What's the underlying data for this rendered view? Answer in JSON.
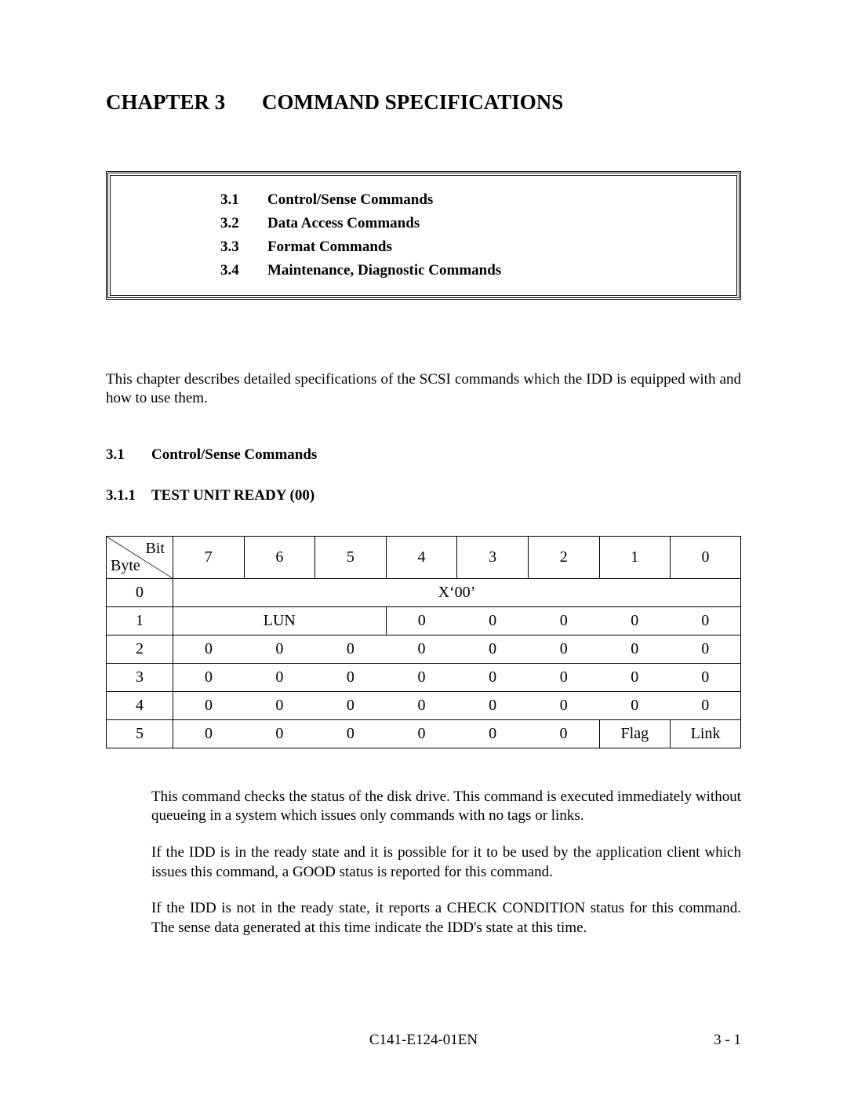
{
  "chapter": {
    "label": "CHAPTER 3",
    "title": "COMMAND SPECIFICATIONS"
  },
  "toc": [
    {
      "num": "3.1",
      "label": "Control/Sense Commands"
    },
    {
      "num": "3.2",
      "label": "Data Access Commands"
    },
    {
      "num": "3.3",
      "label": "Format Commands"
    },
    {
      "num": "3.4",
      "label": "Maintenance, Diagnostic Commands"
    }
  ],
  "intro": "This chapter describes detailed specifications of the SCSI commands which the IDD is equipped with and how to use them.",
  "section": {
    "num": "3.1",
    "title": "Control/Sense Commands"
  },
  "subsection": {
    "num": "3.1.1",
    "title": "TEST UNIT READY (00)"
  },
  "table": {
    "corner": {
      "bit": "Bit",
      "byte": "Byte"
    },
    "bit_headers": [
      "7",
      "6",
      "5",
      "4",
      "3",
      "2",
      "1",
      "0"
    ],
    "rows": [
      {
        "byte": "0",
        "cells": [
          {
            "text": "X‘00’",
            "span": 8
          }
        ]
      },
      {
        "byte": "1",
        "cells": [
          {
            "text": "LUN",
            "span": 3
          },
          {
            "text": "0"
          },
          {
            "text": "0"
          },
          {
            "text": "0"
          },
          {
            "text": "0"
          },
          {
            "text": "0"
          }
        ]
      },
      {
        "byte": "2",
        "cells": [
          {
            "text": "0"
          },
          {
            "text": "0"
          },
          {
            "text": "0"
          },
          {
            "text": "0"
          },
          {
            "text": "0"
          },
          {
            "text": "0"
          },
          {
            "text": "0"
          },
          {
            "text": "0"
          }
        ]
      },
      {
        "byte": "3",
        "cells": [
          {
            "text": "0"
          },
          {
            "text": "0"
          },
          {
            "text": "0"
          },
          {
            "text": "0"
          },
          {
            "text": "0"
          },
          {
            "text": "0"
          },
          {
            "text": "0"
          },
          {
            "text": "0"
          }
        ]
      },
      {
        "byte": "4",
        "cells": [
          {
            "text": "0"
          },
          {
            "text": "0"
          },
          {
            "text": "0"
          },
          {
            "text": "0"
          },
          {
            "text": "0"
          },
          {
            "text": "0"
          },
          {
            "text": "0"
          },
          {
            "text": "0"
          }
        ]
      },
      {
        "byte": "5",
        "cells": [
          {
            "text": "0"
          },
          {
            "text": "0"
          },
          {
            "text": "0"
          },
          {
            "text": "0"
          },
          {
            "text": "0"
          },
          {
            "text": "0"
          },
          {
            "text": "Flag"
          },
          {
            "text": "Link"
          }
        ]
      }
    ],
    "col_widths_pct": [
      10.5,
      11.2,
      11.2,
      11.2,
      11.2,
      11.2,
      11.2,
      11.2,
      11.1
    ],
    "border_color": "#000000",
    "font_size": 20
  },
  "paragraphs": [
    "This command checks the status of the disk drive. This command is executed immediately without queueing in a system which issues only commands with no tags or links.",
    "If the IDD is in the ready state and it is possible for it to be used by the application client which issues  this command, a GOOD status is reported for this command.",
    "If the IDD is not in the ready state, it reports a CHECK CONDITION status for this command. The sense data generated at this time indicate the IDD's state at this time."
  ],
  "footer": {
    "docno": "C141-E124-01EN",
    "pageno": "3 - 1"
  },
  "colors": {
    "text": "#000000",
    "background": "#ffffff",
    "border": "#000000"
  }
}
